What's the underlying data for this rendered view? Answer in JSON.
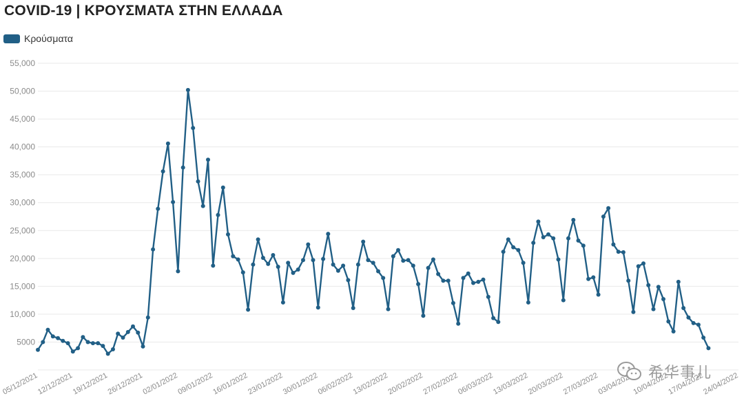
{
  "header": {
    "title": "COVID-19 | ΚΡΟΥΣΜΑΤΑ ΣΤΗΝ ΕΛΛΑΔΑ"
  },
  "watermark": {
    "text": "希华事儿",
    "icon": "wechat-icon"
  },
  "colors": {
    "series": "#215f86",
    "grid": "#e9e9e9",
    "axis_text": "#8a8a8a"
  },
  "chart_data": {
    "type": "line",
    "title": "COVID-19 | ΚΡΟΥΣΜΑΤΑ ΣΤΗΝ ΕΛΛΑΔΑ",
    "xlabel": "",
    "ylabel": "",
    "ylim": [
      0,
      55000
    ],
    "y_ticks": [
      0,
      5000,
      10000,
      15000,
      20000,
      25000,
      30000,
      35000,
      40000,
      45000,
      50000,
      55000
    ],
    "y_tick_labels": [
      "",
      "5000",
      "10,000",
      "15,000",
      "20,000",
      "25,000",
      "30,000",
      "35,000",
      "40,000",
      "45,000",
      "50,000",
      "55,000"
    ],
    "x_range": [
      "2021-12-05",
      "2022-04-24"
    ],
    "x_ticks": [
      "05/12/2021",
      "12/12/2021",
      "19/12/2021",
      "26/12/2021",
      "02/01/2022",
      "09/01/2022",
      "16/01/2022",
      "23/01/2022",
      "30/01/2022",
      "06/02/2022",
      "13/02/2022",
      "20/02/2022",
      "27/02/2022",
      "06/03/2022",
      "13/03/2022",
      "20/03/2022",
      "27/03/2022",
      "03/04/2022",
      "10/04/2022",
      "17/04/2022",
      "24/04/2022"
    ],
    "grid": true,
    "legend": "top-left",
    "series": [
      {
        "name": "Κρούσματα",
        "start_date": "2021-12-05",
        "values": [
          3600,
          5000,
          7200,
          6000,
          5700,
          5200,
          4800,
          3300,
          3900,
          5900,
          5000,
          4800,
          4800,
          4300,
          2900,
          3700,
          6500,
          5800,
          6800,
          7800,
          6700,
          4200,
          9400,
          21600,
          28900,
          35600,
          40600,
          30100,
          17700,
          36300,
          50200,
          43400,
          33800,
          29400,
          37700,
          18700,
          27800,
          32700,
          24300,
          20400,
          19800,
          17500,
          10800,
          18900,
          23400,
          20100,
          19000,
          20600,
          18500,
          12100,
          19200,
          17400,
          18000,
          19700,
          22500,
          19700,
          11200,
          19900,
          24400,
          18900,
          17800,
          18700,
          16100,
          11100,
          18900,
          23000,
          19700,
          19200,
          17700,
          16500,
          10900,
          20400,
          21500,
          19600,
          19700,
          18700,
          15400,
          9700,
          18300,
          19800,
          17200,
          16000,
          16000,
          12000,
          8300,
          16500,
          17300,
          15600,
          15800,
          16200,
          13100,
          9300,
          8600,
          21200,
          23400,
          22000,
          21500,
          19200,
          12100,
          22800,
          26600,
          23800,
          24300,
          23600,
          19800,
          12500,
          23600,
          26900,
          23200,
          22300,
          16300,
          16600,
          13500,
          27500,
          29000,
          22500,
          21200,
          21100,
          16000,
          10400,
          18600,
          19100,
          15200,
          10900,
          14900,
          12700,
          8700,
          6900,
          15800,
          11100,
          9400,
          8400,
          8100,
          5800,
          3900
        ]
      }
    ]
  }
}
